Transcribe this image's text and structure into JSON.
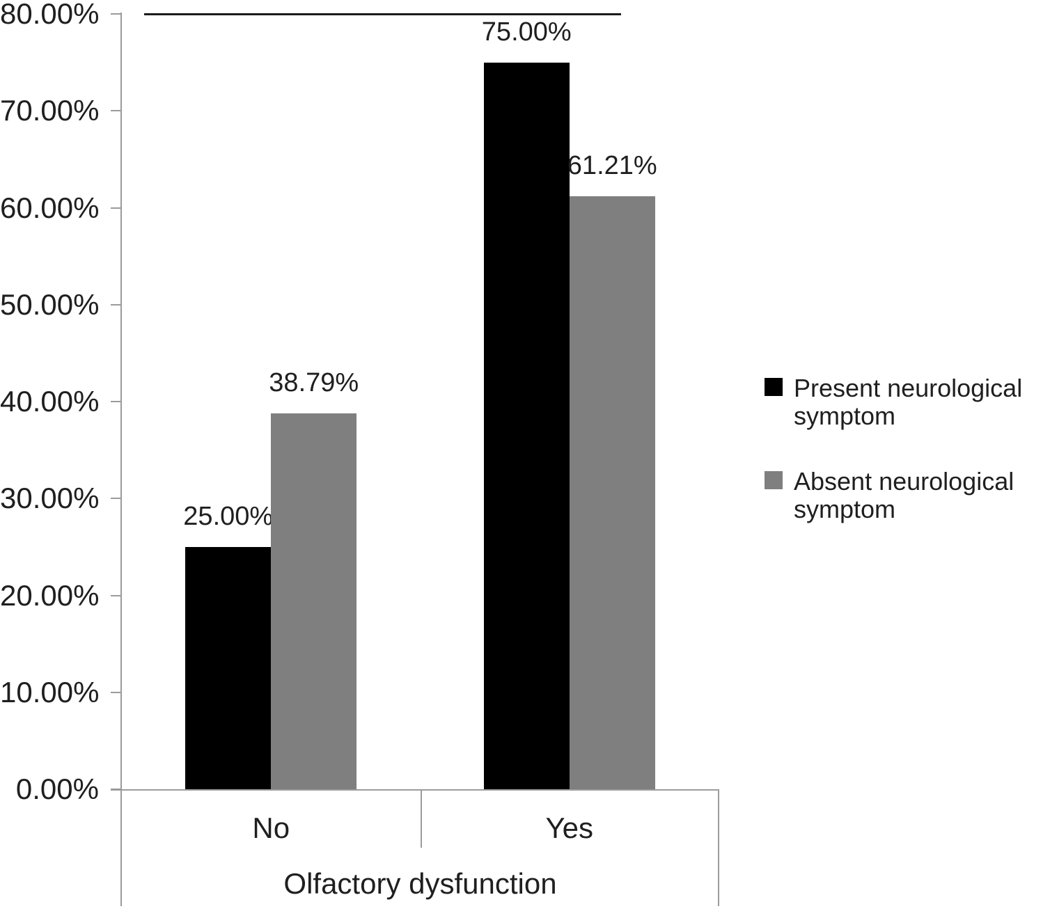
{
  "chart_data": {
    "type": "bar",
    "title": "",
    "categories": [
      "No",
      "Yes"
    ],
    "series": [
      {
        "name": "Present neurological symptom",
        "color": "#000000",
        "values": [
          25.0,
          75.0
        ],
        "data_labels": [
          "25.00%",
          "75.00%"
        ]
      },
      {
        "name": "Absent neurological symptom",
        "color": "#7f7f7f",
        "values": [
          38.79,
          61.21
        ],
        "data_labels": [
          "38.79%",
          "61.21%"
        ]
      }
    ],
    "xlabel": "Olfactory dysfunction",
    "ylabel": "",
    "ylim": [
      0,
      80
    ],
    "ytick_step": 10,
    "ytick_labels": [
      "0.00%",
      "10.00%",
      "20.00%",
      "30.00%",
      "40.00%",
      "50.00%",
      "60.00%",
      "70.00%",
      "80.00%"
    ],
    "grid": false,
    "legend_position": "right",
    "annotations": [
      {
        "type": "rule-line",
        "at_y_value": 80,
        "color": "#1a1a1a"
      }
    ]
  },
  "colors": {
    "axis_line": "#9b9b9b",
    "text": "#1f1f1f",
    "annotation_line": "#1a1a1a",
    "background": "#ffffff"
  }
}
